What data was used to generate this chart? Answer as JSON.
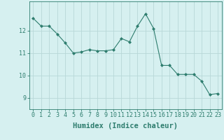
{
  "x": [
    0,
    1,
    2,
    3,
    4,
    5,
    6,
    7,
    8,
    9,
    10,
    11,
    12,
    13,
    14,
    15,
    16,
    17,
    18,
    19,
    20,
    21,
    22,
    23
  ],
  "y": [
    12.55,
    12.2,
    12.2,
    11.85,
    11.45,
    11.0,
    11.05,
    11.15,
    11.1,
    11.1,
    11.15,
    11.65,
    11.5,
    12.2,
    12.75,
    12.1,
    10.45,
    10.45,
    10.05,
    10.05,
    10.05,
    9.75,
    9.15,
    9.2
  ],
  "line_color": "#2e7d6e",
  "marker": "D",
  "marker_size": 2,
  "bg_color": "#d6f0f0",
  "grid_color": "#b8d8d8",
  "xlabel": "Humidex (Indice chaleur)",
  "ylim": [
    8.5,
    13.3
  ],
  "xlim": [
    -0.5,
    23.5
  ],
  "yticks": [
    9,
    10,
    11,
    12
  ],
  "xticks": [
    0,
    1,
    2,
    3,
    4,
    5,
    6,
    7,
    8,
    9,
    10,
    11,
    12,
    13,
    14,
    15,
    16,
    17,
    18,
    19,
    20,
    21,
    22,
    23
  ],
  "title_color": "#2e7d6e",
  "axis_color": "#2e7d6e",
  "tick_fontsize": 6,
  "xlabel_fontsize": 7.5
}
